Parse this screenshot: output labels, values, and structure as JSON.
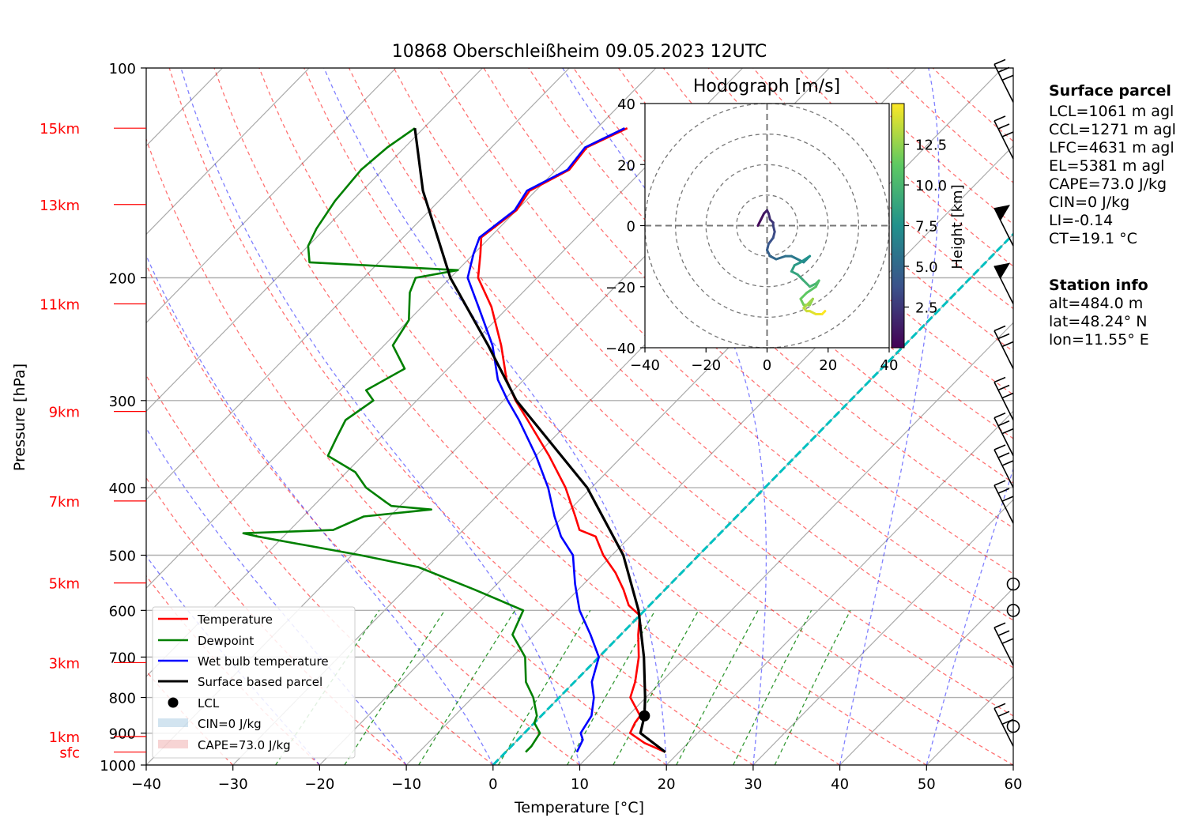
{
  "chart_data": [
    {
      "type": "line",
      "title": "10868 Oberschleißheim 09.05.2023 12UTC",
      "xlabel": "Temperature [°C]",
      "ylabel": "Pressure [hPa]",
      "xlim": [
        -40,
        60
      ],
      "ylim": [
        1000,
        100
      ],
      "y_scale": "log",
      "x_ticks": [
        "−40",
        "−30",
        "−20",
        "−10",
        "0",
        "10",
        "20",
        "30",
        "40",
        "50",
        "60"
      ],
      "y_ticks": [
        {
          "p": 100,
          "label": "100"
        },
        {
          "p": 200,
          "label": "200"
        },
        {
          "p": 300,
          "label": "300"
        },
        {
          "p": 400,
          "label": "400"
        },
        {
          "p": 500,
          "label": "500"
        },
        {
          "p": 600,
          "label": "600"
        },
        {
          "p": 700,
          "label": "700"
        },
        {
          "p": 800,
          "label": "800"
        },
        {
          "p": 900,
          "label": "900"
        },
        {
          "p": 1000,
          "label": "1000"
        }
      ],
      "height_labels": [
        {
          "label": "15km",
          "p": 122
        },
        {
          "label": "13km",
          "p": 157
        },
        {
          "label": "11km",
          "p": 218
        },
        {
          "label": "9km",
          "p": 311
        },
        {
          "label": "7km",
          "p": 418
        },
        {
          "label": "5km",
          "p": 548
        },
        {
          "label": "3km",
          "p": 713
        },
        {
          "label": "1km",
          "p": 910
        },
        {
          "label": "sfc",
          "p": 958
        }
      ],
      "height_label_color": "#ff0000",
      "series": [
        {
          "name": "Temperature",
          "color": "#ff0000",
          "points": [
            [
              958,
              18.4
            ],
            [
              930,
              15
            ],
            [
              900,
              12.2
            ],
            [
              870,
              11.6
            ],
            [
              850,
              11.4
            ],
            [
              800,
              8.2
            ],
            [
              760,
              7
            ],
            [
              700,
              4.6
            ],
            [
              650,
              2
            ],
            [
              610,
              0
            ],
            [
              590,
              -2.4
            ],
            [
              560,
              -4.8
            ],
            [
              530,
              -7.6
            ],
            [
              500,
              -11
            ],
            [
              470,
              -14
            ],
            [
              460,
              -16.6
            ],
            [
              440,
              -18.6
            ],
            [
              400,
              -23
            ],
            [
              360,
              -28.5
            ],
            [
              320,
              -35
            ],
            [
              300,
              -38.6
            ],
            [
              280,
              -42
            ],
            [
              250,
              -46.5
            ],
            [
              220,
              -52
            ],
            [
              200,
              -56.8
            ],
            [
              185,
              -59.2
            ],
            [
              175,
              -61
            ],
            [
              160,
              -60
            ],
            [
              150,
              -60.7
            ],
            [
              140,
              -58.5
            ],
            [
              130,
              -59
            ],
            [
              122,
              -56.5
            ]
          ]
        },
        {
          "name": "Dewpoint",
          "color": "#008000",
          "points": [
            [
              958,
              2.3
            ],
            [
              940,
              2.3
            ],
            [
              900,
              1.8
            ],
            [
              870,
              0
            ],
            [
              850,
              -0.5
            ],
            [
              800,
              -3
            ],
            [
              760,
              -5.6
            ],
            [
              700,
              -8.5
            ],
            [
              650,
              -12.5
            ],
            [
              600,
              -14
            ],
            [
              560,
              -22
            ],
            [
              520,
              -31
            ],
            [
              500,
              -39
            ],
            [
              470,
              -53
            ],
            [
              465,
              -55
            ],
            [
              460,
              -45
            ],
            [
              440,
              -43
            ],
            [
              430,
              -36
            ],
            [
              425,
              -41
            ],
            [
              420,
              -42
            ],
            [
              400,
              -46
            ],
            [
              380,
              -49
            ],
            [
              360,
              -54
            ],
            [
              340,
              -55
            ],
            [
              320,
              -56
            ],
            [
              300,
              -55
            ],
            [
              290,
              -57
            ],
            [
              270,
              -55
            ],
            [
              250,
              -59
            ],
            [
              230,
              -60
            ],
            [
              210,
              -63
            ],
            [
              200,
              -64
            ],
            [
              195,
              -60
            ],
            [
              190,
              -78
            ],
            [
              180,
              -80
            ],
            [
              170,
              -81
            ],
            [
              155,
              -82
            ],
            [
              140,
              -82.5
            ],
            [
              130,
              -82
            ],
            [
              122,
              -81
            ]
          ]
        },
        {
          "name": "Wet bulb temperature",
          "color": "#0000ff",
          "points": [
            [
              958,
              8.2
            ],
            [
              920,
              7.5
            ],
            [
              900,
              6.5
            ],
            [
              850,
              5.8
            ],
            [
              800,
              4
            ],
            [
              760,
              2
            ],
            [
              700,
              0
            ],
            [
              650,
              -3.5
            ],
            [
              600,
              -7.5
            ],
            [
              550,
              -11
            ],
            [
              500,
              -14.5
            ],
            [
              470,
              -18
            ],
            [
              440,
              -21
            ],
            [
              400,
              -25
            ],
            [
              360,
              -30
            ],
            [
              320,
              -36
            ],
            [
              300,
              -39.5
            ],
            [
              280,
              -43
            ],
            [
              250,
              -47.5
            ],
            [
              220,
              -53.5
            ],
            [
              200,
              -58
            ],
            [
              185,
              -60
            ],
            [
              175,
              -61.2
            ],
            [
              160,
              -60.2
            ],
            [
              150,
              -61
            ],
            [
              140,
              -58.7
            ],
            [
              130,
              -59.2
            ],
            [
              122,
              -56.8
            ]
          ]
        },
        {
          "name": "Surface based parcel",
          "color": "#000000",
          "points": [
            [
              958,
              18.4
            ],
            [
              900,
              13.4
            ],
            [
              850,
              11.9
            ],
            [
              800,
              9.9
            ],
            [
              700,
              5.2
            ],
            [
              600,
              -0.7
            ],
            [
              500,
              -8.7
            ],
            [
              400,
              -20.5
            ],
            [
              300,
              -38.5
            ],
            [
              250,
              -48
            ],
            [
              200,
              -60
            ],
            [
              150,
              -73
            ],
            [
              122,
              -81
            ]
          ]
        }
      ],
      "lcl": {
        "name": "LCL",
        "p": 850,
        "t": 11.9
      },
      "isotherm_0c_color": "#00c0c0",
      "legend": {
        "placement": "lower-left",
        "entries": [
          "Temperature",
          "Dewpoint",
          "Wet bulb temperature",
          "Surface based parcel",
          "LCL",
          "CIN=0 J/kg",
          "CAPE=73.0 J/kg"
        ]
      },
      "wind_barbs": [
        {
          "p": 112,
          "note": "barb"
        },
        {
          "p": 135,
          "note": "barb"
        },
        {
          "p": 180,
          "note": "pennant"
        },
        {
          "p": 218,
          "note": "pennant"
        },
        {
          "p": 270,
          "note": "barb"
        },
        {
          "p": 320,
          "note": "barb"
        },
        {
          "p": 360,
          "note": "barb"
        },
        {
          "p": 400,
          "note": "barb"
        },
        {
          "p": 450,
          "note": "barb"
        },
        {
          "p": 550,
          "note": "calm"
        },
        {
          "p": 600,
          "note": "calm"
        },
        {
          "p": 720,
          "note": "barb"
        },
        {
          "p": 880,
          "note": "calm"
        },
        {
          "p": 940,
          "note": "barb"
        }
      ]
    },
    {
      "type": "scatter",
      "title": "Hodograph [m/s]",
      "xlim": [
        -40,
        40
      ],
      "ylim": [
        -40,
        40
      ],
      "x_ticks": [
        "−40",
        "−20",
        "0",
        "20",
        "40"
      ],
      "y_ticks": [
        "40",
        "20",
        "0",
        "−20",
        "−40"
      ],
      "rings": [
        10,
        20,
        30,
        40
      ],
      "colorbar": {
        "label": "Height [km]",
        "ticks": [
          "2.5",
          "5.0",
          "7.5",
          "10.0",
          "12.5"
        ],
        "range": [
          0,
          15
        ]
      },
      "points": [
        [
          -3,
          0
        ],
        [
          -2,
          2
        ],
        [
          -1,
          4
        ],
        [
          0,
          5
        ],
        [
          0.5,
          4
        ],
        [
          1,
          2
        ],
        [
          2,
          1
        ],
        [
          2,
          0
        ],
        [
          2.5,
          -2
        ],
        [
          2,
          -4
        ],
        [
          0.5,
          -6
        ],
        [
          0,
          -8
        ],
        [
          1,
          -10
        ],
        [
          3,
          -11
        ],
        [
          6,
          -10
        ],
        [
          8,
          -10
        ],
        [
          10,
          -11
        ],
        [
          12,
          -12
        ],
        [
          13,
          -11
        ],
        [
          14,
          -10
        ],
        [
          11,
          -12
        ],
        [
          9,
          -13
        ],
        [
          8,
          -15
        ],
        [
          10,
          -16
        ],
        [
          12,
          -18
        ],
        [
          14,
          -20
        ],
        [
          16,
          -19
        ],
        [
          17,
          -18
        ],
        [
          16,
          -20
        ],
        [
          13,
          -22
        ],
        [
          11,
          -24
        ],
        [
          12,
          -26
        ],
        [
          14,
          -26
        ],
        [
          15,
          -24
        ],
        [
          13,
          -26
        ],
        [
          12,
          -27
        ],
        [
          13,
          -28
        ],
        [
          14,
          -28
        ],
        [
          16,
          -29
        ],
        [
          18,
          -29
        ],
        [
          19,
          -28
        ]
      ]
    }
  ],
  "info_panel": {
    "surface_title": "Surface parcel",
    "surface_lines": [
      "LCL=1061 m agl",
      "CCL=1271 m agl",
      "LFC=4631 m agl",
      "EL=5381 m agl",
      "CAPE=73.0 J/kg",
      "CIN=0 J/kg",
      "LI=-0.14",
      "CT=19.1 °C"
    ],
    "station_title": "Station info",
    "station_lines": [
      "alt=484.0 m",
      "lat=48.24° N",
      "lon=11.55° E"
    ]
  }
}
